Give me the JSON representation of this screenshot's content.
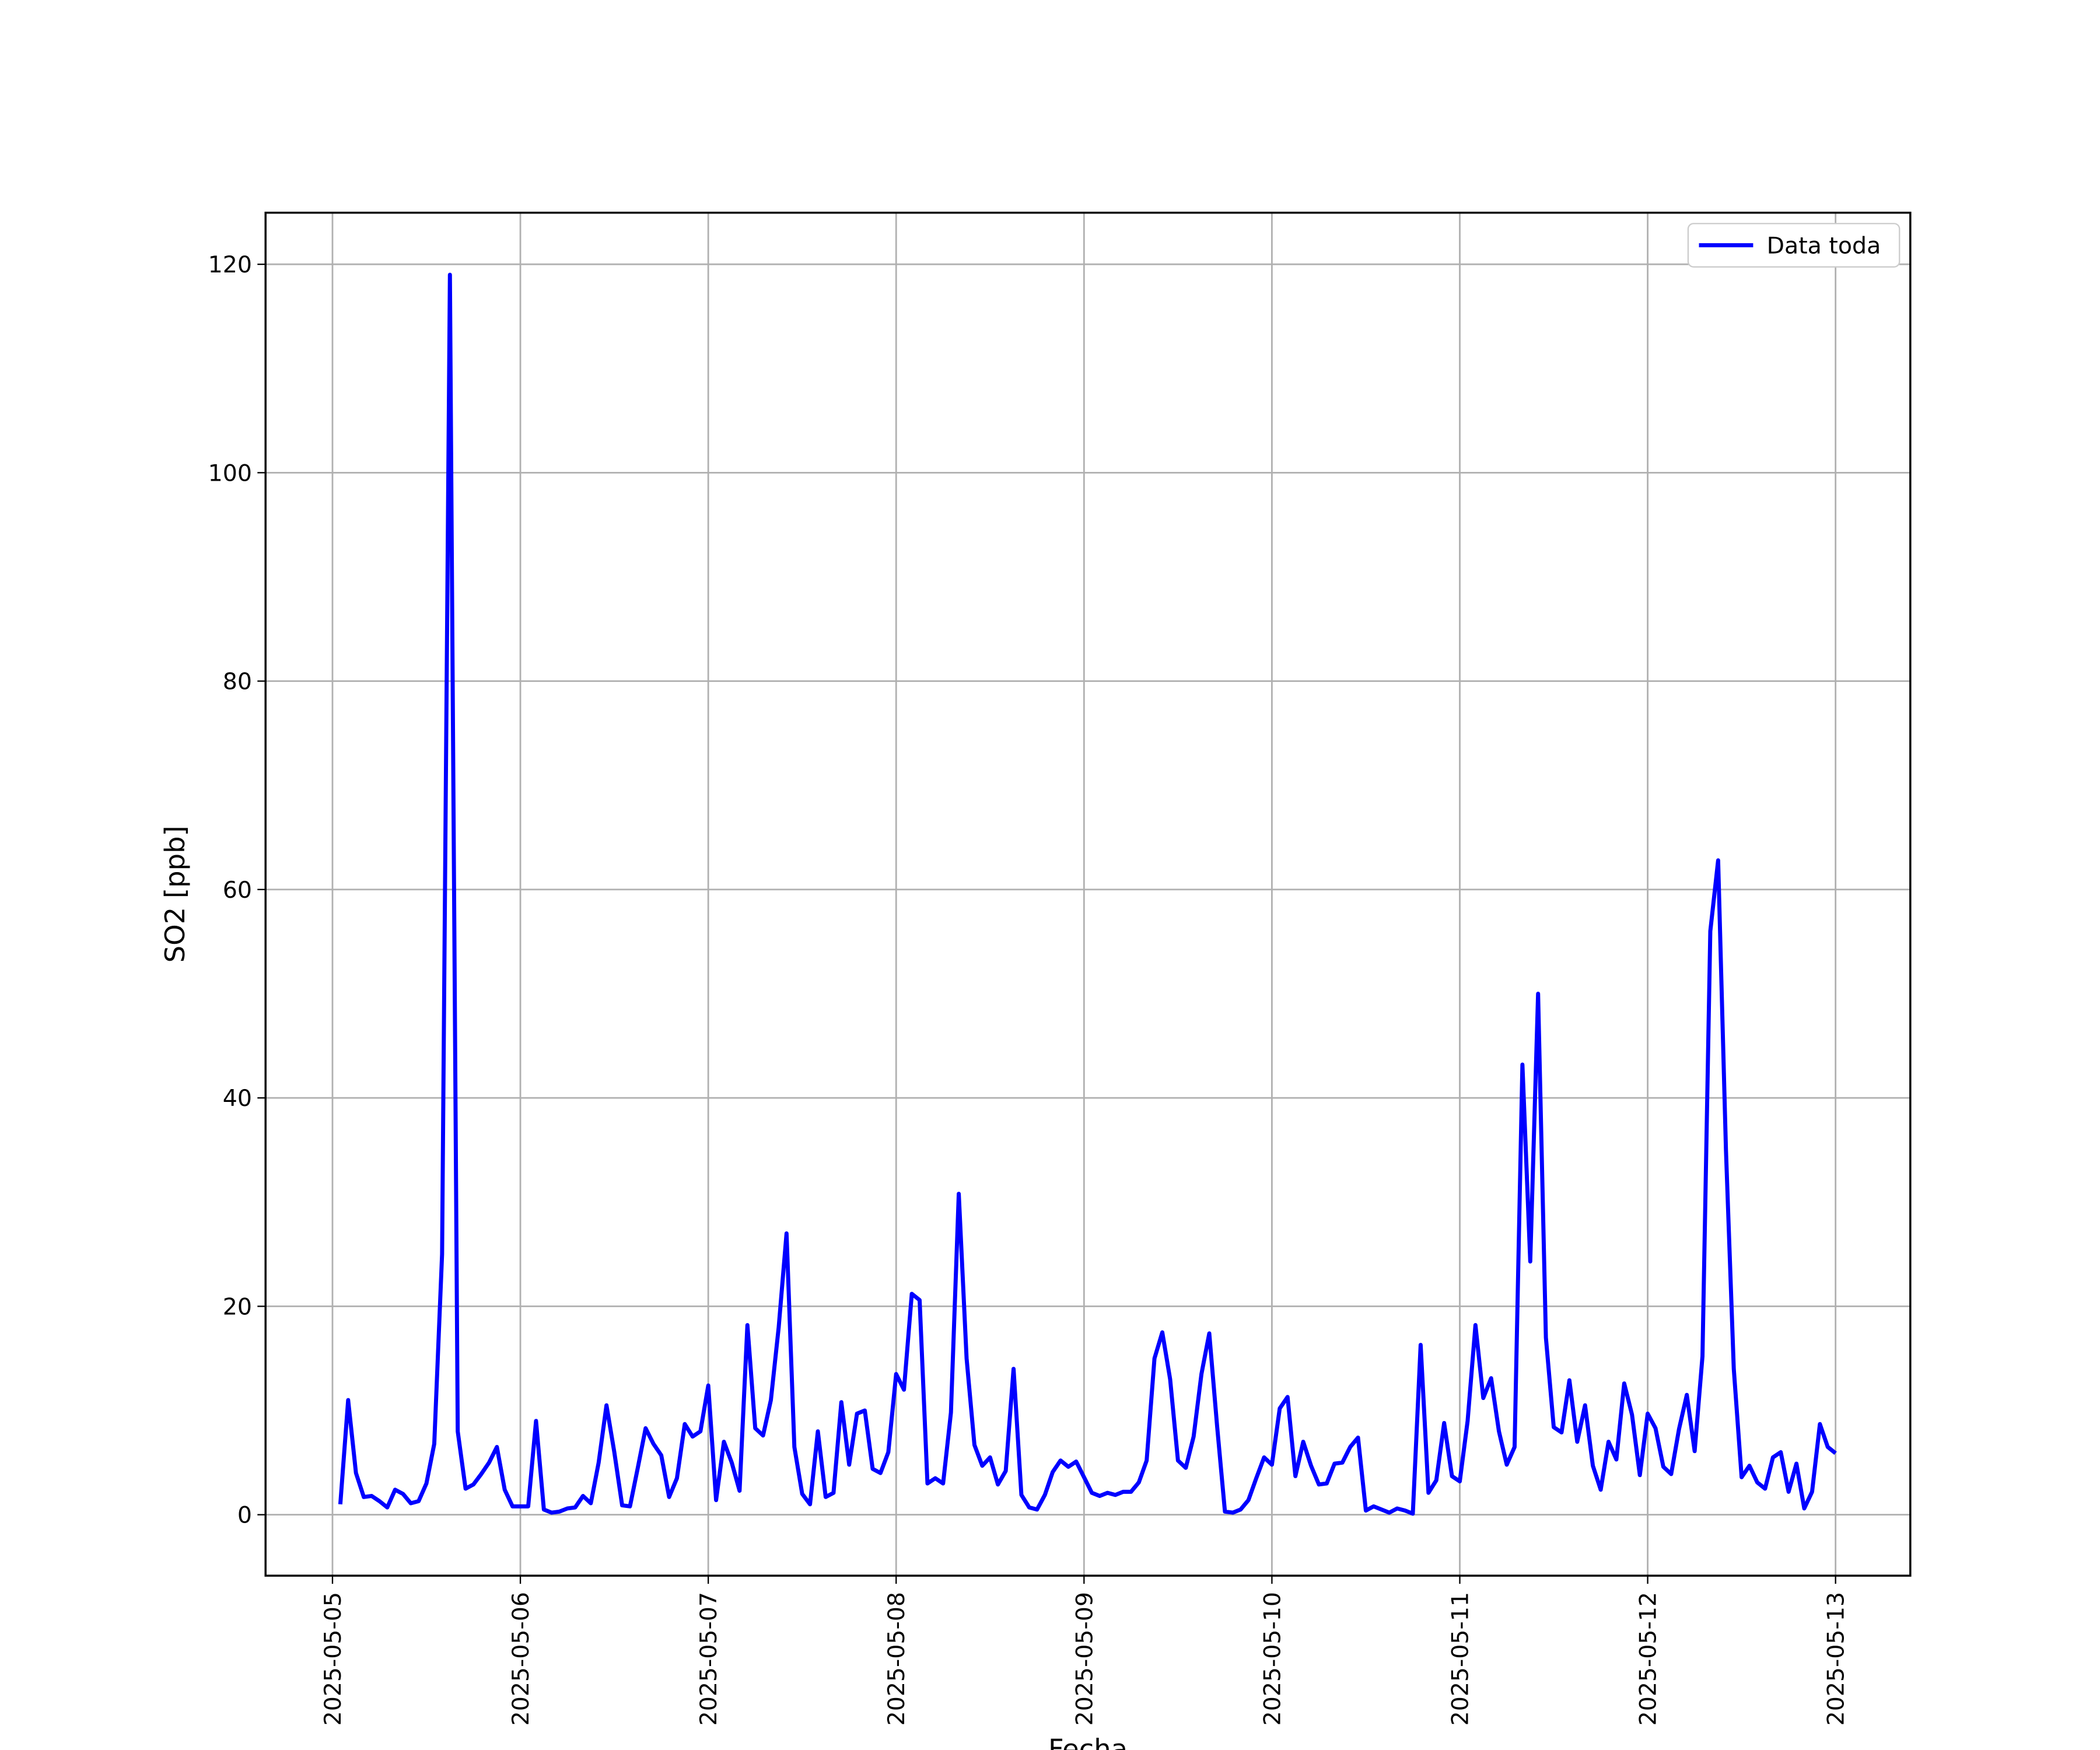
{
  "chart_data": {
    "type": "line",
    "xlabel": "Fecha",
    "ylabel": "SO2 [ppb]",
    "xticks": [
      "2025-05-05",
      "2025-05-06",
      "2025-05-07",
      "2025-05-08",
      "2025-05-09",
      "2025-05-10",
      "2025-05-11",
      "2025-05-12",
      "2025-05-13"
    ],
    "ylim": [
      -5.85,
      124.95
    ],
    "yticks": [
      0,
      20,
      40,
      60,
      80,
      100,
      120
    ],
    "grid": true,
    "legend": "upper right",
    "series": [
      {
        "name": "Data toda",
        "color": "#0000ff",
        "values": [
          1,
          11,
          4,
          1.7,
          1.8,
          1.3,
          0.7,
          2.4,
          2,
          1.1,
          1.3,
          3,
          6.8,
          25,
          119,
          8,
          2.5,
          2.9,
          3.9,
          5,
          6.5,
          2.4,
          0.8,
          0.8,
          0.8,
          9,
          0.5,
          0.2,
          0.3,
          0.6,
          0.7,
          1.8,
          1.1,
          5,
          10.5,
          6,
          0.9,
          0.8,
          4.5,
          8.3,
          6.8,
          5.7,
          1.7,
          3.5,
          8.7,
          7.5,
          8,
          12.4,
          1.4,
          7,
          5,
          2.3,
          18.2,
          8.3,
          7.6,
          11,
          18,
          27,
          6.5,
          2,
          1,
          8,
          1.7,
          2.1,
          10.8,
          4.8,
          9.7,
          10,
          4.4,
          4,
          6,
          13.5,
          12,
          21.2,
          20.6,
          3,
          3.5,
          3,
          9.8,
          30.8,
          15,
          6.7,
          4.7,
          5.5,
          2.9,
          4.2,
          14,
          1.9,
          0.7,
          0.5,
          1.9,
          4.1,
          5.2,
          4.6,
          5.1,
          3.6,
          2.1,
          1.8,
          2.1,
          1.9,
          2.2,
          2.2,
          3.1,
          5.2,
          15,
          17.5,
          13,
          5.2,
          4.5,
          7.5,
          13.5,
          17.4,
          8.5,
          0.3,
          0.2,
          0.5,
          1.4,
          3.5,
          5.5,
          4.8,
          10.2,
          11.3,
          3.7,
          7,
          4.7,
          2.9,
          3,
          4.9,
          5,
          6.5,
          7.4,
          0.4,
          0.8,
          0.5,
          0.2,
          0.6,
          0.4,
          0.1,
          16.3,
          2.1,
          3.3,
          8.8,
          3.7,
          3.2,
          9,
          18.2,
          11.2,
          13.1,
          8,
          4.8,
          6.5,
          43.2,
          24.3,
          50,
          17,
          8.4,
          7.9,
          12.9,
          7,
          10.5,
          4.7,
          2.4,
          7,
          5.3,
          12.6,
          9.6,
          3.8,
          9.7,
          8.3,
          4.6,
          3.9,
          8.2,
          11.5,
          6.1,
          15.2,
          56,
          62.8,
          35,
          14,
          3.6,
          4.7,
          3.1,
          2.5,
          5.5,
          6,
          2.2,
          4.9,
          0.6,
          2.2,
          8.7,
          6.5,
          5.9
        ]
      }
    ]
  }
}
